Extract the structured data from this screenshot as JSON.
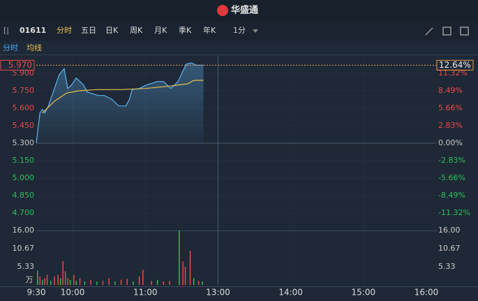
{
  "header": {
    "brand": "华盛通"
  },
  "toolbar": {
    "code": "01611",
    "tabs": [
      "分时",
      "五日",
      "日K",
      "周K",
      "月K",
      "季K",
      "年K"
    ],
    "interval": "1分"
  },
  "subtabs": [
    "分时",
    "均线"
  ],
  "chart_data": {
    "type": "line",
    "xlim": [
      0,
      330
    ],
    "xticks": [
      {
        "value": 0,
        "label": "9:30"
      },
      {
        "value": 30,
        "label": "10:00"
      },
      {
        "value": 90,
        "label": "11:00"
      },
      {
        "value": 150,
        "label": "13:00"
      },
      {
        "value": 210,
        "label": "14:00"
      },
      {
        "value": 270,
        "label": "15:00"
      },
      {
        "value": 330,
        "label": "16:00"
      }
    ],
    "ylim": [
      4.55,
      6.05
    ],
    "yticks": [
      {
        "value": 5.9,
        "label": "5.900"
      },
      {
        "value": 5.75,
        "label": "5.750"
      },
      {
        "value": 5.6,
        "label": "5.600"
      },
      {
        "value": 5.45,
        "label": "5.450"
      },
      {
        "value": 5.3,
        "label": "5.300"
      },
      {
        "value": 5.15,
        "label": "5.150"
      },
      {
        "value": 5.0,
        "label": "5.000"
      },
      {
        "value": 4.85,
        "label": "4.850"
      },
      {
        "value": 4.7,
        "label": "4.700"
      }
    ],
    "y2lim": [
      -14.15,
      14.15
    ],
    "y2ticks": [
      {
        "value": 11.32,
        "label": "11.32%"
      },
      {
        "value": 8.49,
        "label": "8.49%"
      },
      {
        "value": 5.66,
        "label": "5.66%"
      },
      {
        "value": 2.83,
        "label": "2.83%"
      },
      {
        "value": 0,
        "label": "0.00%"
      },
      {
        "value": -2.83,
        "label": "-2.83%"
      },
      {
        "value": -5.66,
        "label": "-5.66%"
      },
      {
        "value": -8.49,
        "label": "-8.49%"
      },
      {
        "value": -11.32,
        "label": "-11.32%"
      }
    ],
    "series": [
      {
        "color": "#5fb3f0",
        "x": [
          0,
          3,
          5,
          7,
          10,
          15,
          19,
          23,
          26,
          29,
          33,
          39,
          42,
          51,
          56,
          62,
          68,
          74,
          77,
          79,
          85,
          91,
          100,
          105,
          111,
          117,
          121,
          124,
          128,
          132,
          138
        ],
        "values": [
          5.3,
          5.56,
          5.59,
          5.56,
          5.62,
          5.77,
          5.89,
          5.94,
          5.77,
          5.8,
          5.86,
          5.8,
          5.74,
          5.71,
          5.71,
          5.68,
          5.62,
          5.62,
          5.68,
          5.76,
          5.77,
          5.8,
          5.83,
          5.83,
          5.77,
          5.83,
          5.92,
          5.98,
          5.99,
          5.97,
          5.97
        ]
      },
      {
        "color": "#e8c050",
        "x": [
          5,
          15,
          25,
          35,
          50,
          70,
          90,
          110,
          125,
          130,
          138
        ],
        "values": [
          5.56,
          5.66,
          5.73,
          5.75,
          5.76,
          5.76,
          5.77,
          5.79,
          5.81,
          5.84,
          5.84
        ]
      }
    ],
    "last": {
      "price": {
        "value": 5.97,
        "label": "5.970"
      },
      "change": {
        "value": 12.64,
        "label": "12.64%"
      }
    },
    "volume": {
      "unit": "万",
      "ylim": [
        0,
        16
      ],
      "yticks": [
        {
          "value": 16,
          "label": "16.00"
        },
        {
          "value": 10.67,
          "label": "10.67"
        },
        {
          "value": 5.33,
          "label": "5.33"
        }
      ],
      "x": [
        1,
        3,
        5,
        7,
        9,
        12,
        15,
        18,
        20,
        22,
        24,
        26,
        28,
        31,
        33,
        36,
        40,
        45,
        50,
        55,
        60,
        65,
        70,
        75,
        80,
        85,
        88,
        95,
        100,
        105,
        110,
        118,
        121,
        123,
        127,
        130,
        134,
        137
      ],
      "values": [
        4.2,
        2.5,
        1.5,
        2,
        3,
        1.2,
        2.5,
        3,
        2,
        7,
        4,
        2,
        1.5,
        3,
        1.2,
        2,
        1,
        1.5,
        1,
        1.2,
        2,
        1,
        1.5,
        1.8,
        1,
        2.5,
        4.5,
        1.2,
        1.5,
        1,
        1.2,
        16,
        6.9,
        5.4,
        10,
        2,
        1.2,
        1
      ],
      "colors": [
        "#2fbf5a",
        "#e84a4a",
        "#2fbf5a",
        "#e84a4a",
        "#e84a4a",
        "#2fbf5a",
        "#e84a4a",
        "#e84a4a",
        "#2fbf5a",
        "#e84a4a",
        "#e84a4a",
        "#e84a4a",
        "#2fbf5a",
        "#e84a4a",
        "#2fbf5a",
        "#e84a4a",
        "#2fbf5a",
        "#e84a4a",
        "#2fbf5a",
        "#e84a4a",
        "#e84a4a",
        "#2fbf5a",
        "#e84a4a",
        "#e84a4a",
        "#2fbf5a",
        "#e84a4a",
        "#e84a4a",
        "#e84a4a",
        "#2fbf5a",
        "#e84a4a",
        "#e84a4a",
        "#2fbf5a",
        "#e84a4a",
        "#e84a4a",
        "#e84a4a",
        "#2fbf5a",
        "#e84a4a",
        "#2fbf5a"
      ]
    }
  }
}
